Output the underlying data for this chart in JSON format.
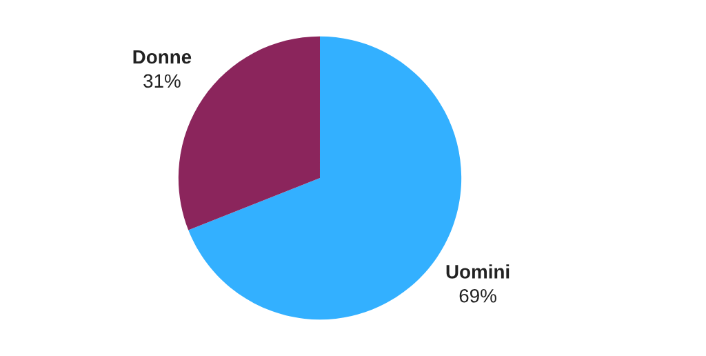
{
  "chart_data": {
    "type": "pie",
    "categories": [
      "Uomini",
      "Donne"
    ],
    "values": [
      69,
      31
    ],
    "value_labels": [
      "69%",
      "31%"
    ],
    "colors": [
      "#33b0ff",
      "#8b255c"
    ]
  }
}
